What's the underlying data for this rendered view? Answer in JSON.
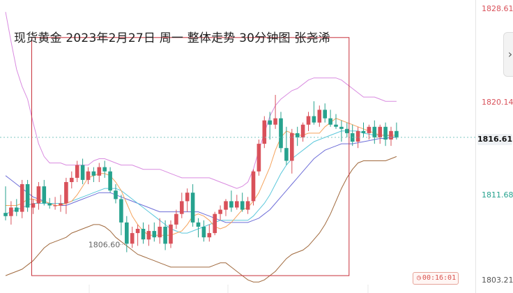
{
  "title": "现货黄金 2023年2月27日 周一 整体走势 30分钟图 张尧浠",
  "timer": {
    "icon": "clock-icon",
    "value": "00:16:01"
  },
  "colors": {
    "up": "#d9515a",
    "down": "#26a28e",
    "bb_upper": "#d98be0",
    "bb_lower": "#a0693d",
    "ma_fast": "#f5a35c",
    "ma_mid": "#5cc8dc",
    "ma_slow": "#6e6ed8",
    "box": "#c8303a",
    "last_line": "#7cc6c0"
  },
  "chart_data": {
    "type": "candlestick",
    "title": "现货黄金 2023年2月27日 周一 整体走势 30分钟图 张尧浠",
    "price_axis": {
      "ticks": [
        {
          "value": 1828.61,
          "label": "1828.61",
          "color": "#d9515a"
        },
        {
          "value": 1820.14,
          "label": "1820.14",
          "color": "#d9515a"
        },
        {
          "value": 1811.68,
          "label": "1811.68",
          "color": "#26a28e"
        },
        {
          "value": 1803.21,
          "label": "1803.21",
          "color": "#555555"
        }
      ],
      "last_price": 1816.61,
      "last_label": "1816.61"
    },
    "annotation": {
      "label": "1806.60",
      "value": 1806.6
    },
    "candles": [
      [
        1809.5,
        1812.0,
        1808.8,
        1809.2
      ],
      [
        1809.2,
        1810.6,
        1808.4,
        1810.0
      ],
      [
        1810.0,
        1810.8,
        1809.2,
        1809.6
      ],
      [
        1809.6,
        1812.6,
        1809.0,
        1812.2
      ],
      [
        1812.2,
        1812.6,
        1809.6,
        1810.0
      ],
      [
        1810.0,
        1810.8,
        1809.4,
        1810.4
      ],
      [
        1810.4,
        1812.4,
        1809.8,
        1812.0
      ],
      [
        1812.0,
        1812.6,
        1810.2,
        1810.4
      ],
      [
        1810.4,
        1810.9,
        1809.9,
        1810.2
      ],
      [
        1810.2,
        1811.0,
        1809.8,
        1810.2
      ],
      [
        1810.2,
        1811.2,
        1809.6,
        1810.4
      ],
      [
        1810.4,
        1812.8,
        1809.4,
        1812.4
      ],
      [
        1812.4,
        1813.4,
        1811.8,
        1812.8
      ],
      [
        1812.8,
        1814.4,
        1812.4,
        1814.0
      ],
      [
        1814.0,
        1814.6,
        1812.2,
        1812.6
      ],
      [
        1812.6,
        1813.8,
        1812.2,
        1813.4
      ],
      [
        1813.4,
        1813.8,
        1812.4,
        1813.0
      ],
      [
        1813.0,
        1814.2,
        1812.4,
        1813.8
      ],
      [
        1813.8,
        1814.4,
        1812.8,
        1813.4
      ],
      [
        1813.4,
        1813.8,
        1811.4,
        1811.6
      ],
      [
        1811.6,
        1812.2,
        1810.4,
        1810.8
      ],
      [
        1810.8,
        1811.2,
        1807.4,
        1808.6
      ],
      [
        1808.6,
        1809.2,
        1805.8,
        1806.6
      ],
      [
        1806.6,
        1808.2,
        1806.2,
        1807.6
      ],
      [
        1807.6,
        1808.4,
        1806.4,
        1808.0
      ],
      [
        1808.0,
        1808.6,
        1806.6,
        1807.0
      ],
      [
        1807.0,
        1808.4,
        1806.4,
        1807.8
      ],
      [
        1807.8,
        1808.6,
        1806.8,
        1807.2
      ],
      [
        1807.2,
        1809.0,
        1806.6,
        1808.2
      ],
      [
        1808.2,
        1808.8,
        1806.0,
        1806.6
      ],
      [
        1806.6,
        1808.8,
        1806.2,
        1808.4
      ],
      [
        1808.4,
        1809.8,
        1808.0,
        1809.4
      ],
      [
        1809.4,
        1811.4,
        1809.0,
        1810.6
      ],
      [
        1810.6,
        1811.8,
        1809.6,
        1811.4
      ],
      [
        1811.4,
        1812.2,
        1808.2,
        1808.6
      ],
      [
        1808.6,
        1809.0,
        1807.2,
        1808.2
      ],
      [
        1808.2,
        1808.8,
        1806.8,
        1807.2
      ],
      [
        1807.2,
        1808.4,
        1806.8,
        1807.6
      ],
      [
        1807.6,
        1809.6,
        1807.4,
        1809.4
      ],
      [
        1809.4,
        1810.2,
        1808.8,
        1809.8
      ],
      [
        1809.8,
        1810.8,
        1809.2,
        1810.6
      ],
      [
        1810.6,
        1811.6,
        1809.6,
        1810.0
      ],
      [
        1810.0,
        1811.2,
        1809.8,
        1810.6
      ],
      [
        1810.6,
        1811.4,
        1809.6,
        1809.8
      ],
      [
        1809.8,
        1811.0,
        1809.4,
        1810.6
      ],
      [
        1810.6,
        1813.6,
        1810.2,
        1813.4
      ],
      [
        1813.4,
        1816.4,
        1813.0,
        1816.0
      ],
      [
        1816.0,
        1818.6,
        1815.6,
        1818.2
      ],
      [
        1818.2,
        1819.0,
        1816.4,
        1817.8
      ],
      [
        1817.8,
        1820.6,
        1817.4,
        1818.4
      ],
      [
        1818.4,
        1819.0,
        1815.2,
        1815.6
      ],
      [
        1815.6,
        1817.6,
        1814.0,
        1814.4
      ],
      [
        1814.4,
        1817.4,
        1813.2,
        1817.0
      ],
      [
        1817.0,
        1817.6,
        1815.8,
        1816.6
      ],
      [
        1816.6,
        1818.0,
        1816.2,
        1817.8
      ],
      [
        1817.8,
        1819.0,
        1817.2,
        1818.6
      ],
      [
        1818.6,
        1820.0,
        1817.8,
        1818.0
      ],
      [
        1818.0,
        1819.6,
        1817.6,
        1819.2
      ],
      [
        1819.2,
        1819.8,
        1818.0,
        1818.4
      ],
      [
        1818.4,
        1819.2,
        1817.6,
        1817.8
      ],
      [
        1817.8,
        1818.8,
        1817.4,
        1817.6
      ],
      [
        1817.6,
        1818.2,
        1816.2,
        1817.4
      ],
      [
        1817.4,
        1818.0,
        1816.6,
        1817.0
      ],
      [
        1817.0,
        1817.8,
        1815.8,
        1816.2
      ],
      [
        1816.2,
        1817.6,
        1815.6,
        1817.2
      ],
      [
        1817.2,
        1818.0,
        1816.6,
        1817.0
      ],
      [
        1817.0,
        1817.8,
        1816.4,
        1817.6
      ],
      [
        1817.6,
        1818.2,
        1816.0,
        1816.6
      ],
      [
        1816.6,
        1817.8,
        1816.0,
        1817.6
      ],
      [
        1817.6,
        1818.0,
        1815.8,
        1816.4
      ],
      [
        1816.4,
        1817.6,
        1815.8,
        1817.2
      ],
      [
        1817.2,
        1818.0,
        1816.4,
        1816.6
      ]
    ],
    "bollinger_upper": [
      1828.4,
      1825.6,
      1823.0,
      1821.4,
      1820.2,
      1818.0,
      1816.0,
      1814.8,
      1814.2,
      1814.2,
      1814.2,
      1814.0,
      1814.0,
      1814.0,
      1814.0,
      1814.0,
      1814.4,
      1814.6,
      1814.6,
      1814.4,
      1814.2,
      1814.0,
      1814.0,
      1814.0,
      1813.8,
      1813.6,
      1813.6,
      1813.6,
      1813.6,
      1813.4,
      1813.2,
      1813.0,
      1812.8,
      1812.8,
      1812.8,
      1812.8,
      1812.8,
      1812.8,
      1812.6,
      1812.4,
      1812.2,
      1812.0,
      1811.8,
      1812.0,
      1812.4,
      1813.6,
      1815.4,
      1817.0,
      1818.6,
      1819.6,
      1820.2,
      1820.6,
      1821.0,
      1821.2,
      1821.6,
      1822.0,
      1822.2,
      1822.2,
      1822.2,
      1822.2,
      1822.2,
      1822.0,
      1821.6,
      1821.2,
      1820.8,
      1820.4,
      1820.4,
      1820.4,
      1820.2,
      1820.0,
      1820.0,
      1820.0
    ],
    "bollinger_lower": [
      1803.6,
      1803.8,
      1804.0,
      1804.2,
      1804.6,
      1805.0,
      1805.6,
      1806.2,
      1806.6,
      1806.8,
      1807.0,
      1807.2,
      1807.6,
      1807.8,
      1808.0,
      1808.2,
      1808.4,
      1808.4,
      1808.2,
      1807.8,
      1807.2,
      1806.8,
      1806.4,
      1806.0,
      1805.6,
      1805.4,
      1805.2,
      1805.0,
      1804.8,
      1804.6,
      1804.4,
      1804.4,
      1804.4,
      1804.4,
      1804.4,
      1804.4,
      1804.4,
      1804.4,
      1804.6,
      1804.8,
      1804.8,
      1804.4,
      1804.0,
      1803.6,
      1803.2,
      1803.0,
      1803.0,
      1803.2,
      1803.6,
      1804.0,
      1804.6,
      1805.2,
      1805.6,
      1805.8,
      1806.0,
      1806.4,
      1807.0,
      1807.6,
      1808.4,
      1809.4,
      1810.6,
      1811.8,
      1812.8,
      1813.6,
      1814.2,
      1814.4,
      1814.4,
      1814.4,
      1814.4,
      1814.4,
      1814.6,
      1814.8
    ],
    "ma_fast": [
      1810.2,
      1810.2,
      1810.2,
      1810.4,
      1810.8,
      1810.8,
      1810.6,
      1810.6,
      1810.4,
      1810.2,
      1810.2,
      1810.4,
      1810.6,
      1811.2,
      1812.0,
      1812.8,
      1813.0,
      1813.2,
      1813.2,
      1813.0,
      1812.4,
      1811.6,
      1810.4,
      1809.2,
      1808.4,
      1807.8,
      1807.4,
      1807.4,
      1807.4,
      1807.4,
      1807.4,
      1807.6,
      1807.8,
      1808.4,
      1809.2,
      1809.4,
      1809.2,
      1808.8,
      1808.2,
      1808.0,
      1808.2,
      1808.6,
      1809.2,
      1809.8,
      1810.0,
      1810.6,
      1811.4,
      1812.6,
      1813.8,
      1815.4,
      1816.6,
      1817.2,
      1817.0,
      1816.8,
      1816.8,
      1817.0,
      1817.0,
      1817.0,
      1817.6,
      1818.0,
      1818.4,
      1818.2,
      1818.0,
      1817.8,
      1817.6,
      1817.4,
      1817.2,
      1817.0,
      1816.8,
      1816.8,
      1816.8,
      1816.8
    ],
    "ma_mid": [
      1809.4,
      1809.6,
      1809.8,
      1810.0,
      1810.2,
      1810.4,
      1810.4,
      1810.4,
      1810.4,
      1810.4,
      1810.4,
      1810.4,
      1810.6,
      1810.8,
      1811.0,
      1811.2,
      1811.4,
      1811.6,
      1811.8,
      1811.8,
      1811.8,
      1811.6,
      1811.2,
      1810.8,
      1810.4,
      1810.0,
      1809.6,
      1809.2,
      1808.8,
      1808.4,
      1808.0,
      1807.8,
      1807.6,
      1807.6,
      1807.8,
      1808.0,
      1808.2,
      1808.4,
      1808.6,
      1808.8,
      1808.8,
      1808.8,
      1808.8,
      1808.8,
      1808.8,
      1809.2,
      1809.8,
      1810.4,
      1811.2,
      1812.2,
      1813.2,
      1814.0,
      1814.6,
      1815.0,
      1815.4,
      1815.8,
      1816.2,
      1816.4,
      1816.6,
      1816.8,
      1817.0,
      1817.2,
      1817.2,
      1817.2,
      1817.2,
      1817.0,
      1816.9,
      1816.8,
      1816.8,
      1816.8,
      1816.7,
      1816.6
    ],
    "ma_slow": [
      1813.0,
      1812.6,
      1812.2,
      1811.8,
      1811.4,
      1811.0,
      1810.8,
      1810.6,
      1810.4,
      1810.2,
      1810.2,
      1810.2,
      1810.4,
      1810.6,
      1810.8,
      1811.0,
      1811.2,
      1811.4,
      1811.4,
      1811.4,
      1811.2,
      1811.0,
      1810.8,
      1810.6,
      1810.4,
      1810.2,
      1810.0,
      1809.8,
      1809.6,
      1809.6,
      1809.6,
      1809.6,
      1809.6,
      1809.6,
      1809.6,
      1809.6,
      1809.4,
      1809.2,
      1809.0,
      1808.8,
      1808.6,
      1808.6,
      1808.6,
      1808.6,
      1808.6,
      1808.8,
      1809.0,
      1809.4,
      1809.8,
      1810.4,
      1811.0,
      1811.6,
      1812.2,
      1812.8,
      1813.4,
      1814.0,
      1814.6,
      1815.0,
      1815.4,
      1815.6,
      1815.8,
      1816.0,
      1816.0,
      1816.0,
      1816.1,
      1816.2,
      1816.3,
      1816.4,
      1816.5,
      1816.5,
      1816.6,
      1816.6
    ],
    "range_box": {
      "start_index": 5,
      "end_index": 62,
      "high": 1826.0,
      "low": 1803.6
    }
  }
}
